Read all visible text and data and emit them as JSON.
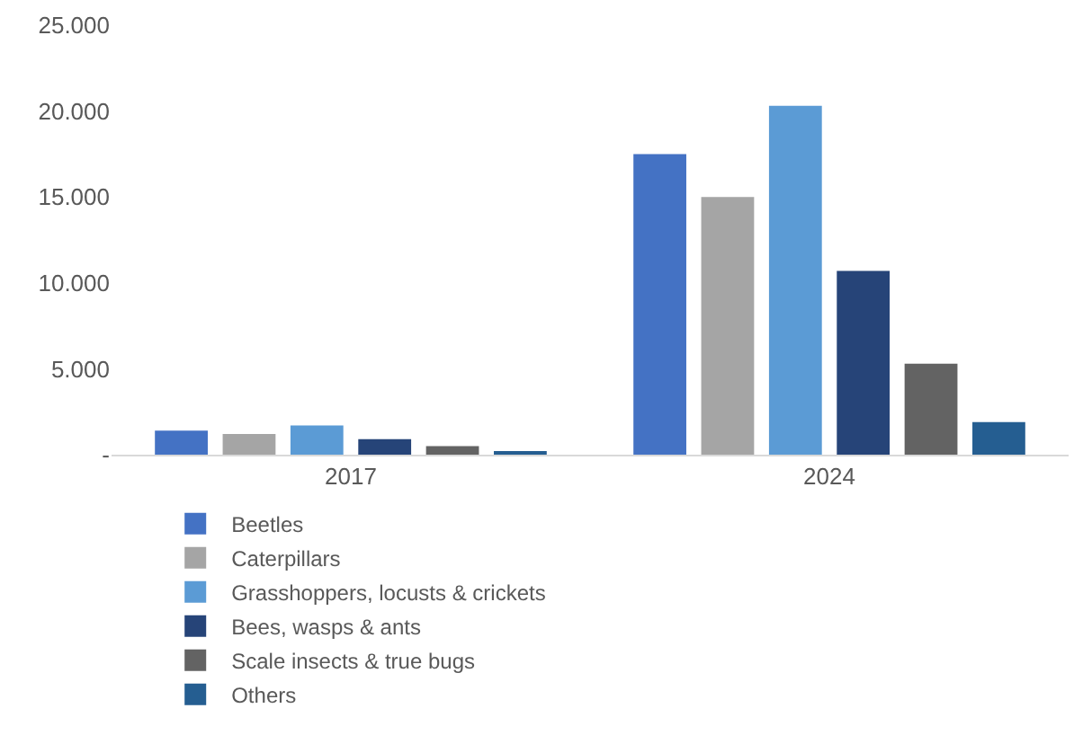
{
  "chart_data": {
    "type": "bar",
    "categories": [
      "2017",
      "2024"
    ],
    "series": [
      {
        "name": "Beetles",
        "color": "#4472c4",
        "values": [
          1400,
          17500
        ]
      },
      {
        "name": "Caterpillars",
        "color": "#a5a5a5",
        "values": [
          1200,
          15000
        ]
      },
      {
        "name": "Grasshoppers, locusts & crickets",
        "color": "#5b9bd5",
        "values": [
          1700,
          20300
        ]
      },
      {
        "name": "Bees, wasps & ants",
        "color": "#264478",
        "values": [
          900,
          10700
        ]
      },
      {
        "name": "Scale insects & true bugs",
        "color": "#636363",
        "values": [
          500,
          5300
        ]
      },
      {
        "name": "Others",
        "color": "#255e91",
        "values": [
          200,
          1900
        ]
      }
    ],
    "ylim": [
      0,
      25000
    ],
    "yticks": [
      {
        "value": 0,
        "label": "-"
      },
      {
        "value": 5000,
        "label": "5.000"
      },
      {
        "value": 10000,
        "label": "10.000"
      },
      {
        "value": 15000,
        "label": "15.000"
      },
      {
        "value": 20000,
        "label": "20.000"
      },
      {
        "value": 25000,
        "label": "25.000"
      }
    ],
    "legend": "bottom"
  }
}
